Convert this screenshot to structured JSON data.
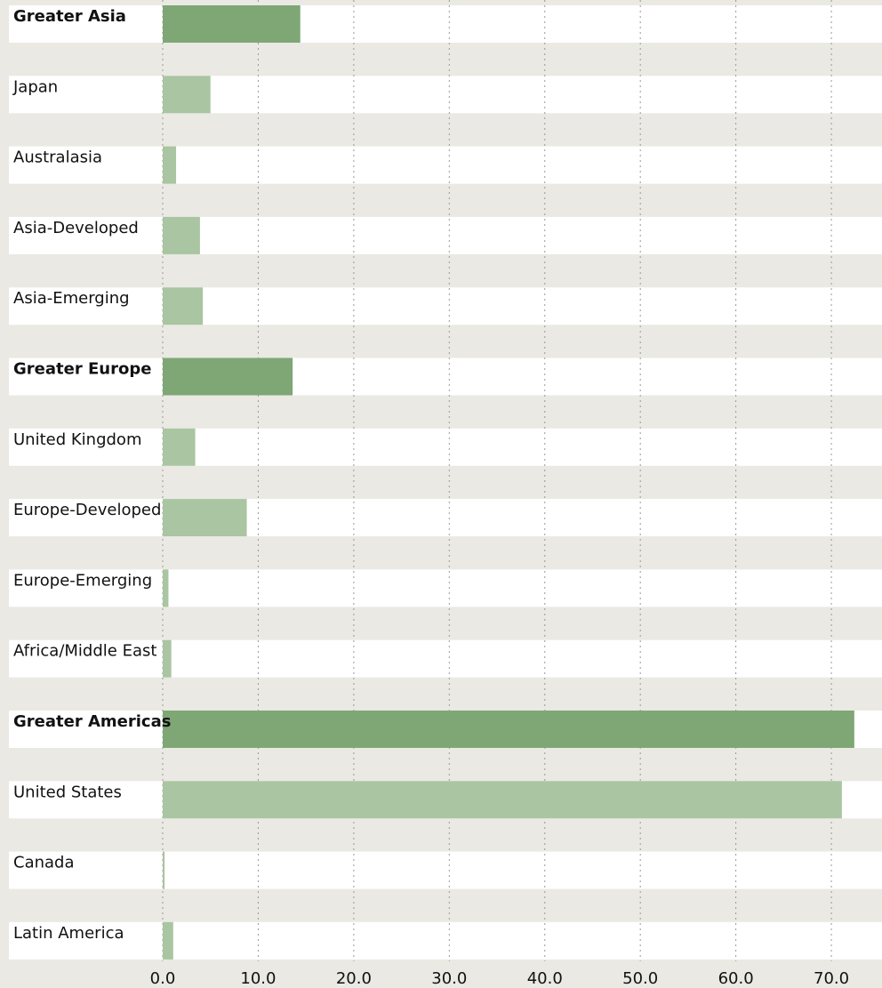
{
  "chart_data": {
    "type": "hbar",
    "categories": [
      "Greater Asia",
      "Japan",
      "Australasia",
      "Asia-Developed",
      "Asia-Emerging",
      "Greater Europe",
      "United Kingdom",
      "Europe-Developed",
      "Europe-Emerging",
      "Africa/Middle East",
      "Greater Americas",
      "United States",
      "Canada",
      "Latin America"
    ],
    "values": [
      14.4,
      5.0,
      1.4,
      3.9,
      4.2,
      13.6,
      3.4,
      8.8,
      0.6,
      0.9,
      72.4,
      71.1,
      0.2,
      1.1
    ],
    "emphasized": [
      true,
      false,
      false,
      false,
      false,
      true,
      false,
      false,
      false,
      false,
      true,
      false,
      false,
      false
    ],
    "colors": {
      "emphasized": "#7ea775",
      "regular": "#a9c5a1"
    },
    "xlim": [
      0,
      75.3
    ],
    "xticks": [
      {
        "value": 0,
        "label": "0.0"
      },
      {
        "value": 10,
        "label": "10.0"
      },
      {
        "value": 20,
        "label": "20.0"
      },
      {
        "value": 30,
        "label": "30.0"
      },
      {
        "value": 40,
        "label": "40.0"
      },
      {
        "value": 50,
        "label": "50.0"
      },
      {
        "value": 60,
        "label": "60.0"
      },
      {
        "value": 70,
        "label": "70.0"
      }
    ],
    "grid": true
  }
}
